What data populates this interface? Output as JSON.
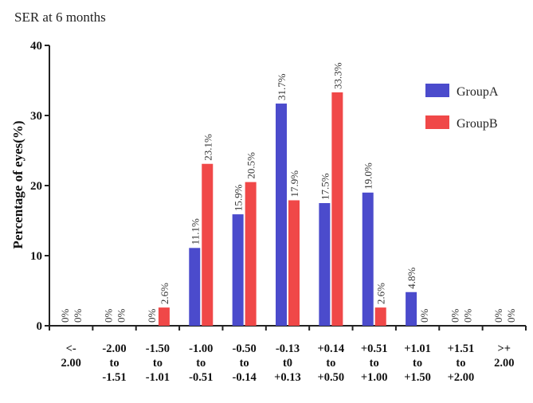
{
  "chart_data": {
    "type": "bar",
    "title": "SER at 6 months",
    "ylabel": "Percentage of eyes(%)",
    "xlabel": "",
    "ylim": [
      0,
      40
    ],
    "yticks": [
      "0",
      "10",
      "20",
      "30",
      "40"
    ],
    "categories": [
      [
        "<-",
        "2.00"
      ],
      [
        "-2.00",
        "to",
        "-1.51"
      ],
      [
        "-1.50",
        "to",
        "-1.01"
      ],
      [
        "-1.00",
        "to",
        "-0.51"
      ],
      [
        "-0.50",
        "to",
        "-0.14"
      ],
      [
        "-0.13",
        "t0",
        "+0.13"
      ],
      [
        "+0.14",
        "to",
        "+0.50"
      ],
      [
        "+0.51",
        "to",
        "+1.00"
      ],
      [
        "+1.01",
        "to",
        "+1.50"
      ],
      [
        "+1.51",
        "to",
        "+2.00"
      ],
      [
        ">+",
        "2.00"
      ]
    ],
    "series": [
      {
        "name": "GroupA",
        "color": "#4b4bcc",
        "values": [
          0,
          0,
          0,
          11.1,
          15.9,
          31.7,
          17.5,
          19.0,
          4.8,
          0,
          0
        ],
        "labels": [
          "0%",
          "0%",
          "0%",
          "11.1%",
          "15.9%",
          "31.7%",
          "17.5%",
          "19.0%",
          "4.8%",
          "0%",
          "0%"
        ]
      },
      {
        "name": "GroupB",
        "color": "#f04848",
        "values": [
          0,
          0,
          2.6,
          23.1,
          20.5,
          17.9,
          33.3,
          2.6,
          0,
          0,
          0
        ],
        "labels": [
          "0%",
          "0%",
          "2.6%",
          "23.1%",
          "20.5%",
          "17.9%",
          "33.3%",
          "2.6%",
          "0%",
          "0%",
          "0%"
        ]
      }
    ],
    "legend_position": "top-right"
  }
}
